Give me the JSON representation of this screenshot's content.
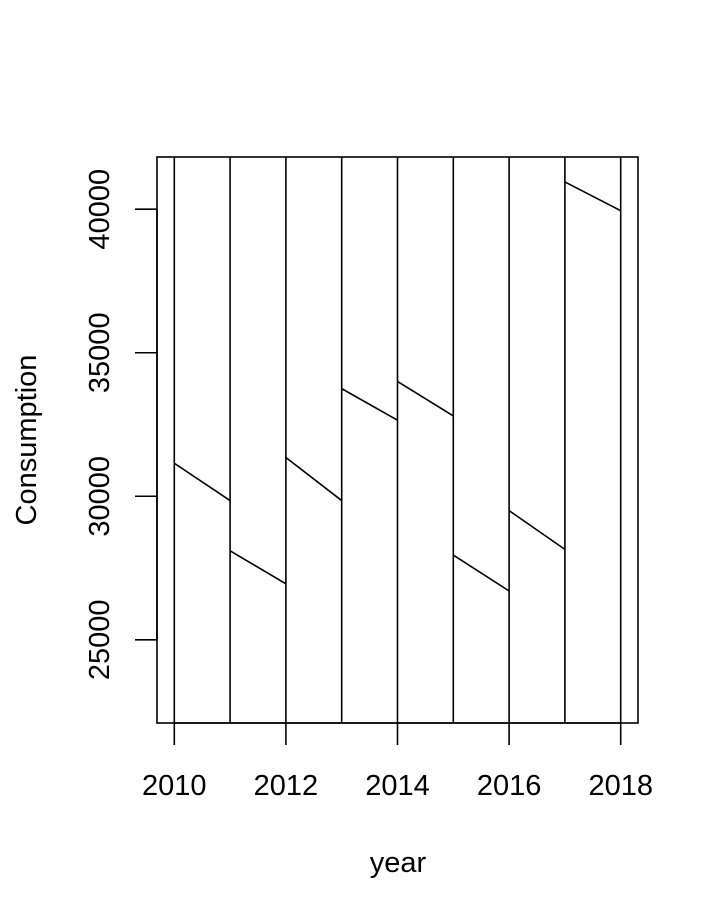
{
  "chart_data": {
    "type": "line",
    "xlabel": "year",
    "ylabel": "Consumption",
    "xlim": [
      2009.69,
      2018.31
    ],
    "ylim": [
      22100,
      41820
    ],
    "x_ticks": [
      2010,
      2012,
      2014,
      2016,
      2018
    ],
    "y_ticks": [
      25000,
      30000,
      35000,
      40000
    ],
    "x_tick_labels": [
      "2010",
      "2012",
      "2014",
      "2016",
      "2018"
    ],
    "y_tick_labels": [
      "25000",
      "30000",
      "35000",
      "40000"
    ],
    "grid": false,
    "legend": "none",
    "vertical_lines_at": [
      2010,
      2011,
      2012,
      2013,
      2014,
      2015,
      2016,
      2017,
      2018
    ],
    "series": [
      {
        "segments": [
          {
            "x": [
              2010,
              2011
            ],
            "y": [
              31150,
              29850
            ]
          },
          {
            "x": [
              2011,
              2012
            ],
            "y": [
              28100,
              26950
            ]
          },
          {
            "x": [
              2012,
              2013
            ],
            "y": [
              31350,
              29850
            ]
          },
          {
            "x": [
              2013,
              2014
            ],
            "y": [
              33750,
              32650
            ]
          },
          {
            "x": [
              2014,
              2015
            ],
            "y": [
              34000,
              32800
            ]
          },
          {
            "x": [
              2015,
              2016
            ],
            "y": [
              27950,
              26700
            ]
          },
          {
            "x": [
              2016,
              2017
            ],
            "y": [
              29500,
              28150
            ]
          },
          {
            "x": [
              2017,
              2018
            ],
            "y": [
              40950,
              39950
            ]
          }
        ]
      }
    ],
    "colors": {
      "line": "#000000",
      "background": "#ffffff"
    }
  }
}
